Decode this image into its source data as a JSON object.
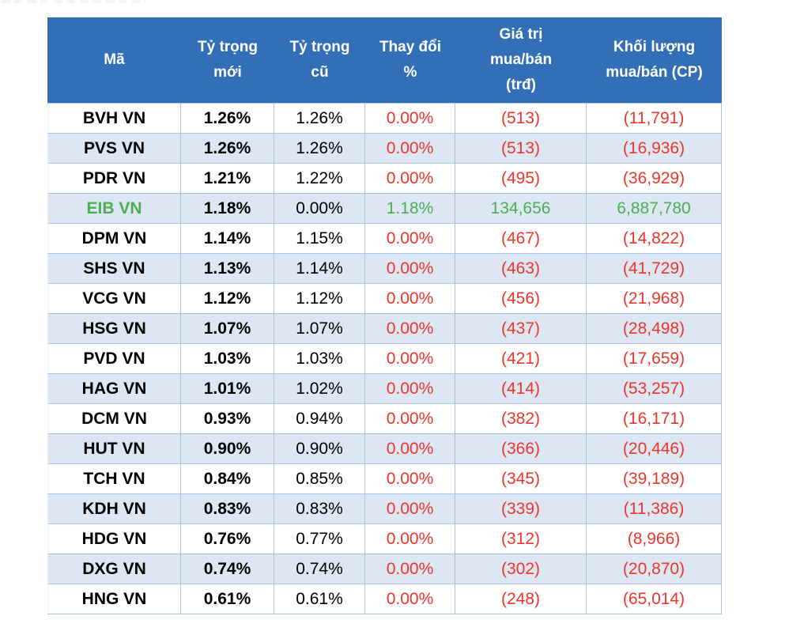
{
  "table": {
    "headers": [
      {
        "id": "ma",
        "label": "Mã"
      },
      {
        "id": "ty-trong-moi",
        "label": "Tỷ trọng\nmới"
      },
      {
        "id": "ty-trong-cu",
        "label": "Tỷ trọng\ncũ"
      },
      {
        "id": "thay-doi",
        "label": "Thay đổi\n%"
      },
      {
        "id": "gia-tri-mua-ban",
        "label": "Giá trị\nmua/bán\n(trđ)"
      },
      {
        "id": "khoi-luong-mua-ban",
        "label": "Khối lượng\nmua/bán (CP)"
      }
    ],
    "rows": [
      {
        "code": "BVH VN",
        "new_weight": "1.26%",
        "old_weight": "1.26%",
        "change": "0.00%",
        "value": "(513)",
        "volume": "(11,791)",
        "highlight": false
      },
      {
        "code": "PVS VN",
        "new_weight": "1.26%",
        "old_weight": "1.26%",
        "change": "0.00%",
        "value": "(513)",
        "volume": "(16,936)",
        "highlight": false
      },
      {
        "code": "PDR VN",
        "new_weight": "1.21%",
        "old_weight": "1.22%",
        "change": "0.00%",
        "value": "(495)",
        "volume": "(36,929)",
        "highlight": false
      },
      {
        "code": "EIB VN",
        "new_weight": "1.18%",
        "old_weight": "0.00%",
        "change": "1.18%",
        "value": "134,656",
        "volume": "6,887,780",
        "highlight": true
      },
      {
        "code": "DPM VN",
        "new_weight": "1.14%",
        "old_weight": "1.15%",
        "change": "0.00%",
        "value": "(467)",
        "volume": "(14,822)",
        "highlight": false
      },
      {
        "code": "SHS VN",
        "new_weight": "1.13%",
        "old_weight": "1.14%",
        "change": "0.00%",
        "value": "(463)",
        "volume": "(41,729)",
        "highlight": false
      },
      {
        "code": "VCG VN",
        "new_weight": "1.12%",
        "old_weight": "1.12%",
        "change": "0.00%",
        "value": "(456)",
        "volume": "(21,968)",
        "highlight": false
      },
      {
        "code": "HSG VN",
        "new_weight": "1.07%",
        "old_weight": "1.07%",
        "change": "0.00%",
        "value": "(437)",
        "volume": "(28,498)",
        "highlight": false
      },
      {
        "code": "PVD VN",
        "new_weight": "1.03%",
        "old_weight": "1.03%",
        "change": "0.00%",
        "value": "(421)",
        "volume": "(17,659)",
        "highlight": false
      },
      {
        "code": "HAG VN",
        "new_weight": "1.01%",
        "old_weight": "1.02%",
        "change": "0.00%",
        "value": "(414)",
        "volume": "(53,257)",
        "highlight": false
      },
      {
        "code": "DCM VN",
        "new_weight": "0.93%",
        "old_weight": "0.94%",
        "change": "0.00%",
        "value": "(382)",
        "volume": "(16,171)",
        "highlight": false
      },
      {
        "code": "HUT VN",
        "new_weight": "0.90%",
        "old_weight": "0.90%",
        "change": "0.00%",
        "value": "(366)",
        "volume": "(20,446)",
        "highlight": false
      },
      {
        "code": "TCH VN",
        "new_weight": "0.84%",
        "old_weight": "0.85%",
        "change": "0.00%",
        "value": "(345)",
        "volume": "(39,189)",
        "highlight": false
      },
      {
        "code": "KDH VN",
        "new_weight": "0.83%",
        "old_weight": "0.83%",
        "change": "0.00%",
        "value": "(339)",
        "volume": "(11,386)",
        "highlight": false
      },
      {
        "code": "HDG VN",
        "new_weight": "0.76%",
        "old_weight": "0.77%",
        "change": "0.00%",
        "value": "(312)",
        "volume": "(8,966)",
        "highlight": false
      },
      {
        "code": "DXG VN",
        "new_weight": "0.74%",
        "old_weight": "0.74%",
        "change": "0.00%",
        "value": "(302)",
        "volume": "(20,870)",
        "highlight": false
      },
      {
        "code": "HNG VN",
        "new_weight": "0.61%",
        "old_weight": "0.61%",
        "change": "0.00%",
        "value": "(248)",
        "volume": "(65,014)",
        "highlight": false
      }
    ]
  },
  "colors": {
    "header_bg": "#336FB7",
    "header_text": "#FFFFFF",
    "row_bg": "#FFFFFF",
    "row_alt_bg": "#DCE7F3",
    "border": "#A9C3E1",
    "negative_text": "#EE352A",
    "positive_text": "#4CAE51",
    "text": "#000000"
  },
  "chart_data": {
    "type": "table",
    "columns": [
      "Mã",
      "Tỷ trọng mới",
      "Tỷ trọng cũ",
      "Thay đổi %",
      "Giá trị mua/bán (trđ)",
      "Khối lượng mua/bán (CP)"
    ],
    "rows": [
      [
        "BVH VN",
        "1.26%",
        "1.26%",
        "0.00%",
        "(513)",
        "(11,791)"
      ],
      [
        "PVS VN",
        "1.26%",
        "1.26%",
        "0.00%",
        "(513)",
        "(16,936)"
      ],
      [
        "PDR VN",
        "1.21%",
        "1.22%",
        "0.00%",
        "(495)",
        "(36,929)"
      ],
      [
        "EIB VN",
        "1.18%",
        "0.00%",
        "1.18%",
        "134,656",
        "6,887,780"
      ],
      [
        "DPM VN",
        "1.14%",
        "1.15%",
        "0.00%",
        "(467)",
        "(14,822)"
      ],
      [
        "SHS VN",
        "1.13%",
        "1.14%",
        "0.00%",
        "(463)",
        "(41,729)"
      ],
      [
        "VCG VN",
        "1.12%",
        "1.12%",
        "0.00%",
        "(456)",
        "(21,968)"
      ],
      [
        "HSG VN",
        "1.07%",
        "1.07%",
        "0.00%",
        "(437)",
        "(28,498)"
      ],
      [
        "PVD VN",
        "1.03%",
        "1.03%",
        "0.00%",
        "(421)",
        "(17,659)"
      ],
      [
        "HAG VN",
        "1.01%",
        "1.02%",
        "0.00%",
        "(414)",
        "(53,257)"
      ],
      [
        "DCM VN",
        "0.93%",
        "0.94%",
        "0.00%",
        "(382)",
        "(16,171)"
      ],
      [
        "HUT VN",
        "0.90%",
        "0.90%",
        "0.00%",
        "(366)",
        "(20,446)"
      ],
      [
        "TCH VN",
        "0.84%",
        "0.85%",
        "0.00%",
        "(345)",
        "(39,189)"
      ],
      [
        "KDH VN",
        "0.83%",
        "0.83%",
        "0.00%",
        "(339)",
        "(11,386)"
      ],
      [
        "HDG VN",
        "0.76%",
        "0.77%",
        "0.00%",
        "(312)",
        "(8,966)"
      ],
      [
        "DXG VN",
        "0.74%",
        "0.74%",
        "0.00%",
        "(302)",
        "(20,870)"
      ],
      [
        "HNG VN",
        "0.61%",
        "0.61%",
        "0.00%",
        "(248)",
        "(65,014)"
      ]
    ],
    "notes": "Negative values shown in parentheses (red); EIB VN row values shown in green"
  }
}
